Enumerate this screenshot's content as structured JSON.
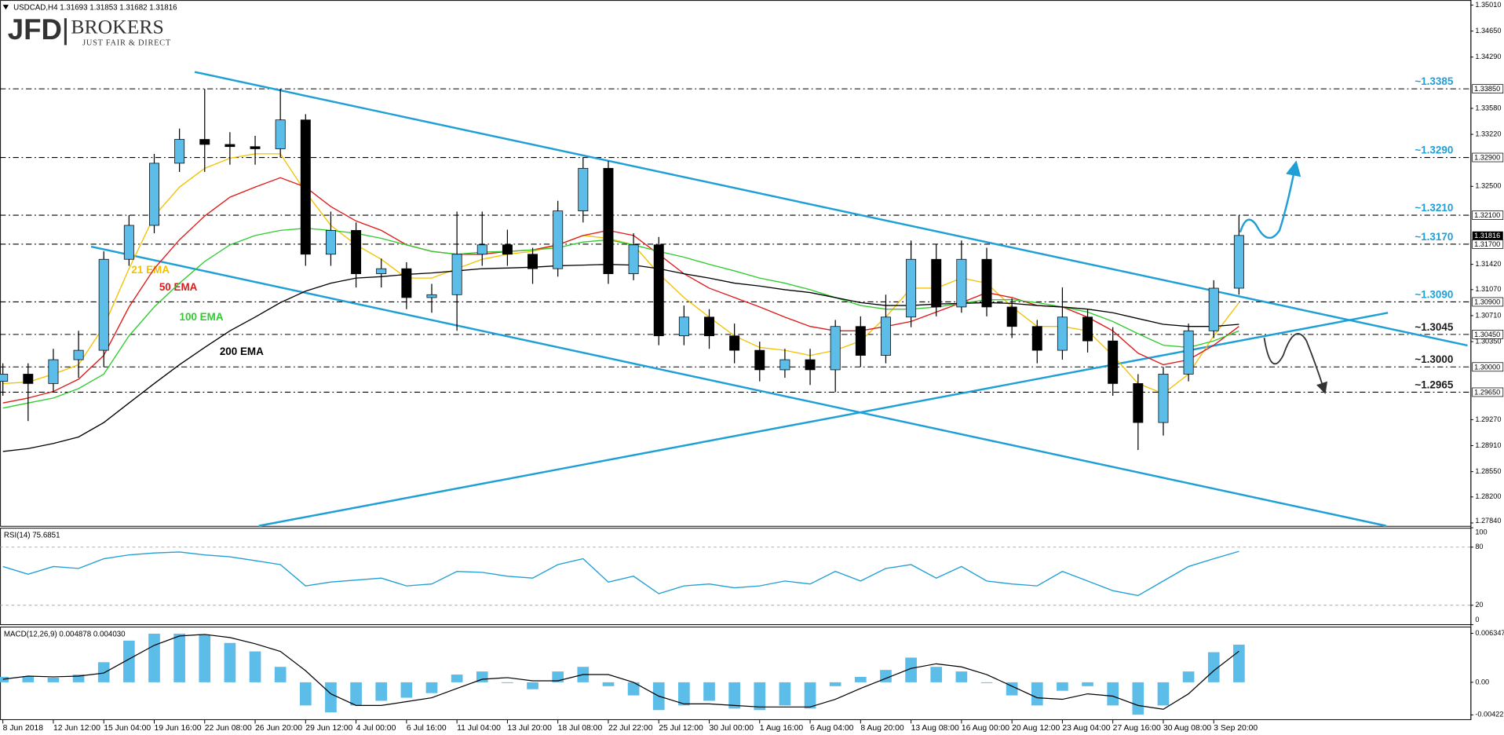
{
  "logo": {
    "brand": "JFD",
    "name": "BROKERS",
    "tagline": "JUST FAIR & DIRECT"
  },
  "chart_data": [
    {
      "type": "candlestick",
      "title": "USDCAD,H4  1.31693 1.31853 1.31682 1.31816",
      "categories": [
        "8 Jun 2018",
        null,
        "12 Jun 12:00",
        null,
        "15 Jun 04:00",
        null,
        "19 Jun 16:00",
        null,
        "22 Jun 08:00",
        null,
        "26 Jun 20:00",
        null,
        "29 Jun 12:00",
        null,
        "4 Jul 00:00",
        null,
        "6 Jul 16:00",
        null,
        "11 Jul 04:00",
        null,
        "13 Jul 20:00",
        null,
        "18 Jul 08:00",
        null,
        "22 Jul 22:00",
        null,
        "25 Jul 12:00",
        null,
        "30 Jul 00:00",
        null,
        "1 Aug 16:00",
        null,
        "6 Aug 04:00",
        null,
        "8 Aug 20:00",
        null,
        "13 Aug 08:00",
        null,
        "16 Aug 00:00",
        null,
        "20 Aug 12:00",
        null,
        "23 Aug 04:00",
        null,
        "27 Aug 16:00",
        null,
        "30 Aug 08:00",
        null,
        "3 Sep 20:00",
        null
      ],
      "open": [
        1.298,
        1.299,
        1.2977,
        1.301,
        1.3023,
        1.3149,
        1.3196,
        1.3282,
        1.3315,
        1.3308,
        1.3305,
        1.3302,
        1.3342,
        1.3156,
        1.3189,
        1.3129,
        1.3136,
        1.3096,
        1.31,
        1.3156,
        1.3169,
        1.3156,
        1.3136,
        1.3216,
        1.3275,
        1.3129,
        1.3169,
        1.3043,
        1.3069,
        1.3043,
        1.3023,
        1.2996,
        1.301,
        1.2996,
        1.3056,
        1.3016,
        1.3069,
        1.3149,
        1.3083,
        1.3149,
        1.3083,
        1.3056,
        1.3023,
        1.3069,
        1.3036,
        1.2977,
        1.2923,
        1.299,
        1.305,
        1.3109
      ],
      "high": [
        1.3005,
        1.3005,
        1.3025,
        1.305,
        1.316,
        1.321,
        1.3295,
        1.333,
        1.3385,
        1.3325,
        1.332,
        1.3385,
        1.335,
        1.3215,
        1.32,
        1.315,
        1.3145,
        1.3115,
        1.3215,
        1.3215,
        1.319,
        1.3165,
        1.323,
        1.329,
        1.3285,
        1.3185,
        1.318,
        1.3085,
        1.308,
        1.306,
        1.3035,
        1.3025,
        1.3025,
        1.3065,
        1.307,
        1.31,
        1.3175,
        1.317,
        1.3175,
        1.3165,
        1.3095,
        1.3065,
        1.311,
        1.308,
        1.3055,
        1.299,
        1.3,
        1.306,
        1.312,
        1.321
      ],
      "low": [
        1.296,
        1.2925,
        1.2965,
        1.2985,
        1.3,
        1.314,
        1.3185,
        1.327,
        1.327,
        1.328,
        1.328,
        1.329,
        1.314,
        1.314,
        1.311,
        1.311,
        1.308,
        1.3075,
        1.305,
        1.314,
        1.314,
        1.3115,
        1.3125,
        1.32,
        1.3115,
        1.312,
        1.303,
        1.303,
        1.3025,
        1.3005,
        1.298,
        1.2985,
        1.2975,
        1.2965,
        1.3,
        1.3005,
        1.3055,
        1.307,
        1.3075,
        1.307,
        1.304,
        1.3005,
        1.301,
        1.302,
        1.296,
        1.2885,
        1.2905,
        1.298,
        1.304,
        1.31
      ],
      "close": [
        1.299,
        1.2977,
        1.301,
        1.3023,
        1.3149,
        1.3196,
        1.3282,
        1.3315,
        1.3308,
        1.3305,
        1.3302,
        1.3342,
        1.3156,
        1.3189,
        1.3129,
        1.3136,
        1.3096,
        1.31,
        1.3156,
        1.3169,
        1.3156,
        1.3136,
        1.3216,
        1.3275,
        1.3129,
        1.3169,
        1.3043,
        1.3069,
        1.3043,
        1.3023,
        1.2996,
        1.301,
        1.2996,
        1.3056,
        1.3016,
        1.3069,
        1.3149,
        1.3083,
        1.3149,
        1.3083,
        1.3056,
        1.3023,
        1.3069,
        1.3036,
        1.2977,
        1.2923,
        1.299,
        1.305,
        1.3109,
        1.3182
      ],
      "up_color": "#5bbde8",
      "down_color": "#000000",
      "ylim": [
        1.278,
        1.3508
      ],
      "yticks": [
        {
          "value": 1.3501,
          "label": "1.35010"
        },
        {
          "value": 1.3465,
          "label": "1.34650"
        },
        {
          "value": 1.3429,
          "label": "1.34290"
        },
        {
          "value": 1.3358,
          "label": "1.33580"
        },
        {
          "value": 1.3322,
          "label": "1.33220"
        },
        {
          "value": 1.325,
          "label": "1.32500"
        },
        {
          "value": 1.3142,
          "label": "1.31420"
        },
        {
          "value": 1.3107,
          "label": "1.31070"
        },
        {
          "value": 1.3071,
          "label": "1.30710"
        },
        {
          "value": 1.3035,
          "label": "1.30350"
        },
        {
          "value": 1.2927,
          "label": "1.29270"
        },
        {
          "value": 1.2891,
          "label": "1.28910"
        },
        {
          "value": 1.2855,
          "label": "1.28550"
        },
        {
          "value": 1.282,
          "label": "1.28200"
        },
        {
          "value": 1.2784,
          "label": "1.27840"
        }
      ],
      "last_price": 1.31816,
      "levels": [
        {
          "value": 1.3385,
          "label": "~1.3385",
          "axis_label": "1.33850",
          "color": "#1e9fd6"
        },
        {
          "value": 1.329,
          "label": "~1.3290",
          "axis_label": "1.32900",
          "color": "#1e9fd6"
        },
        {
          "value": 1.321,
          "label": "~1.3210",
          "axis_label": "1.32100",
          "color": "#1e9fd6"
        },
        {
          "value": 1.317,
          "label": "~1.3170",
          "axis_label": "1.31700",
          "color": "#1e9fd6"
        },
        {
          "value": 1.309,
          "label": "~1.3090",
          "axis_label": "1.30900",
          "color": "#1e9fd6"
        },
        {
          "value": 1.3045,
          "label": "~1.3045",
          "axis_label": "1.30450",
          "color": "#1a1a1a"
        },
        {
          "value": 1.3,
          "label": "~1.3000",
          "axis_label": "1.30000",
          "color": "#1a1a1a"
        },
        {
          "value": 1.2965,
          "label": "~1.2965",
          "axis_label": "1.29650",
          "color": "#1a1a1a"
        }
      ],
      "overlays": [
        {
          "name": "21 EMA",
          "color": "#f2c200",
          "values": [
            1.2977,
            1.2979,
            1.299,
            1.3003,
            1.3056,
            1.3136,
            1.3209,
            1.3249,
            1.3275,
            1.3289,
            1.3295,
            1.3295,
            1.3242,
            1.3196,
            1.3169,
            1.3149,
            1.3123,
            1.3123,
            1.3136,
            1.3149,
            1.3156,
            1.316,
            1.3169,
            1.3182,
            1.3178,
            1.3169,
            1.3129,
            1.3096,
            1.3069,
            1.3043,
            1.3027,
            1.3023,
            1.3016,
            1.3023,
            1.3036,
            1.3069,
            1.3109,
            1.3109,
            1.3123,
            1.3116,
            1.3083,
            1.3056,
            1.3056,
            1.305,
            1.3016,
            1.2977,
            1.2963,
            1.299,
            1.3043,
            1.3089
          ]
        },
        {
          "name": "50 EMA",
          "color": "#e01818",
          "values": [
            1.295,
            1.2957,
            1.2966,
            1.2983,
            1.3016,
            1.3083,
            1.3136,
            1.3176,
            1.3209,
            1.3235,
            1.3249,
            1.3262,
            1.3249,
            1.3222,
            1.3202,
            1.3189,
            1.3169,
            1.316,
            1.3156,
            1.3156,
            1.316,
            1.3162,
            1.3169,
            1.3182,
            1.3189,
            1.3182,
            1.3156,
            1.3129,
            1.3109,
            1.3096,
            1.3083,
            1.3069,
            1.3056,
            1.305,
            1.305,
            1.3056,
            1.3063,
            1.3076,
            1.3089,
            1.3103,
            1.3096,
            1.3085,
            1.3083,
            1.3069,
            1.305,
            1.3019,
            1.3003,
            1.301,
            1.303,
            1.3056
          ]
        },
        {
          "name": "100 EMA",
          "color": "#2ecc2e",
          "values": [
            1.2943,
            1.295,
            1.2957,
            1.297,
            1.299,
            1.3043,
            1.3083,
            1.3116,
            1.3146,
            1.3169,
            1.3182,
            1.3189,
            1.3192,
            1.3189,
            1.3185,
            1.3178,
            1.3169,
            1.316,
            1.3156,
            1.3159,
            1.316,
            1.3162,
            1.3165,
            1.3173,
            1.3176,
            1.3169,
            1.316,
            1.3152,
            1.3142,
            1.3133,
            1.3123,
            1.3116,
            1.3107,
            1.3096,
            1.3085,
            1.308,
            1.308,
            1.3083,
            1.3088,
            1.3093,
            1.3093,
            1.3089,
            1.3083,
            1.3076,
            1.3063,
            1.3046,
            1.303,
            1.3027,
            1.3036,
            1.305
          ]
        },
        {
          "name": "200 EMA",
          "color": "#000000",
          "values": [
            1.2883,
            1.2887,
            1.2894,
            1.2903,
            1.2923,
            1.295,
            1.2977,
            1.3003,
            1.3027,
            1.305,
            1.3069,
            1.3089,
            1.3105,
            1.3116,
            1.3123,
            1.3125,
            1.3128,
            1.313,
            1.3133,
            1.3136,
            1.3137,
            1.3138,
            1.314,
            1.3141,
            1.3142,
            1.3141,
            1.3136,
            1.3129,
            1.3123,
            1.3116,
            1.3112,
            1.3107,
            1.3103,
            1.3096,
            1.3089,
            1.3085,
            1.3085,
            1.3087,
            1.3088,
            1.3089,
            1.3088,
            1.3085,
            1.3083,
            1.308,
            1.3075,
            1.3067,
            1.3059,
            1.3056,
            1.3056,
            1.3059
          ]
        }
      ],
      "grid": false
    },
    {
      "type": "line",
      "title": "RSI(14) 75.6851",
      "series": [
        {
          "color": "#1e9fd6",
          "values": [
            60,
            52,
            60,
            58,
            68,
            72,
            74,
            75,
            72,
            70,
            66,
            62,
            40,
            44,
            46,
            48,
            40,
            42,
            55,
            54,
            50,
            48,
            62,
            68,
            44,
            50,
            32,
            40,
            42,
            38,
            40,
            45,
            42,
            55,
            45,
            58,
            62,
            48,
            60,
            45,
            42,
            40,
            55,
            45,
            35,
            30,
            45,
            60,
            68,
            75.6851
          ]
        }
      ],
      "ylim": [
        0,
        100
      ],
      "yticks": [
        100,
        80,
        20,
        0
      ],
      "reference_lines": [
        80,
        20
      ]
    },
    {
      "type": "macd",
      "title": "MACD(12,26,9) 0.004878 0.004030",
      "series": [
        {
          "color": "#5bbde8",
          "values": [
            0.0007,
            0.0008,
            0.0006,
            0.001,
            0.0026,
            0.0054,
            0.0063,
            0.0063,
            0.0062,
            0.0051,
            0.004,
            0.002,
            -0.003,
            -0.0039,
            -0.003,
            -0.0024,
            -0.002,
            -0.0014,
            0.001,
            0.0014,
            -0.0001,
            -0.0009,
            0.0014,
            0.002,
            -0.0005,
            -0.0017,
            -0.0036,
            -0.003,
            -0.0024,
            -0.0034,
            -0.0036,
            -0.003,
            -0.0034,
            -0.0005,
            0.0007,
            0.0016,
            0.0032,
            0.002,
            0.0014,
            -0.0001,
            -0.0017,
            -0.003,
            -0.0011,
            -0.0005,
            -0.003,
            -0.0042,
            -0.003,
            0.0014,
            0.0039,
            0.004878
          ]
        },
        {
          "color": "#000000",
          "values": [
            0.0004,
            0.0008,
            0.0007,
            0.0008,
            0.0012,
            0.003,
            0.0048,
            0.006,
            0.0062,
            0.0058,
            0.005,
            0.004,
            0.0015,
            -0.0015,
            -0.003,
            -0.003,
            -0.0025,
            -0.002,
            -0.0008,
            0.0004,
            0.0006,
            0.0002,
            0.0002,
            0.001,
            0.001,
            0.0,
            -0.0018,
            -0.0028,
            -0.0028,
            -0.003,
            -0.0032,
            -0.0032,
            -0.0032,
            -0.0022,
            -0.0008,
            0.0005,
            0.0018,
            0.0024,
            0.002,
            0.001,
            -0.0005,
            -0.002,
            -0.0022,
            -0.0015,
            -0.0018,
            -0.003,
            -0.0035,
            -0.0015,
            0.0015,
            0.00403
          ]
        }
      ],
      "ylim": [
        -0.00484,
        0.00722
      ],
      "yticks": [
        0.006347,
        {
          "value": 0,
          "label": "0.00"
        },
        -0.004221
      ]
    }
  ]
}
